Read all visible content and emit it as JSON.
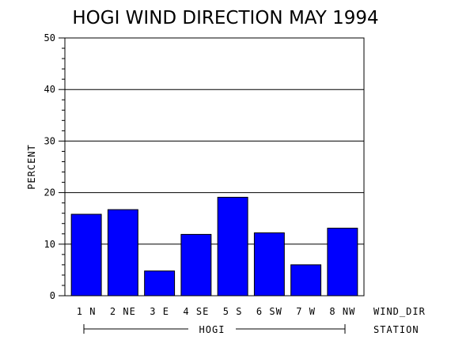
{
  "chart_data": {
    "type": "bar",
    "title": "HOGI WIND DIRECTION MAY 1994",
    "ylabel": "PERCENT",
    "xlabel": "WIND_DIR",
    "group_axis_label": "STATION",
    "group_label": "HOGI",
    "categories": [
      "1 N",
      "2 NE",
      "3 E",
      "4 SE",
      "5 S",
      "6 SW",
      "7 W",
      "8 NW"
    ],
    "values": [
      15.8,
      16.7,
      4.8,
      11.9,
      19.1,
      12.2,
      6.0,
      13.1
    ],
    "ylim": [
      0,
      50
    ],
    "yticks": [
      "0",
      "10",
      "20",
      "30",
      "40",
      "50"
    ],
    "grid": true,
    "bar_color": "#0000ff"
  }
}
